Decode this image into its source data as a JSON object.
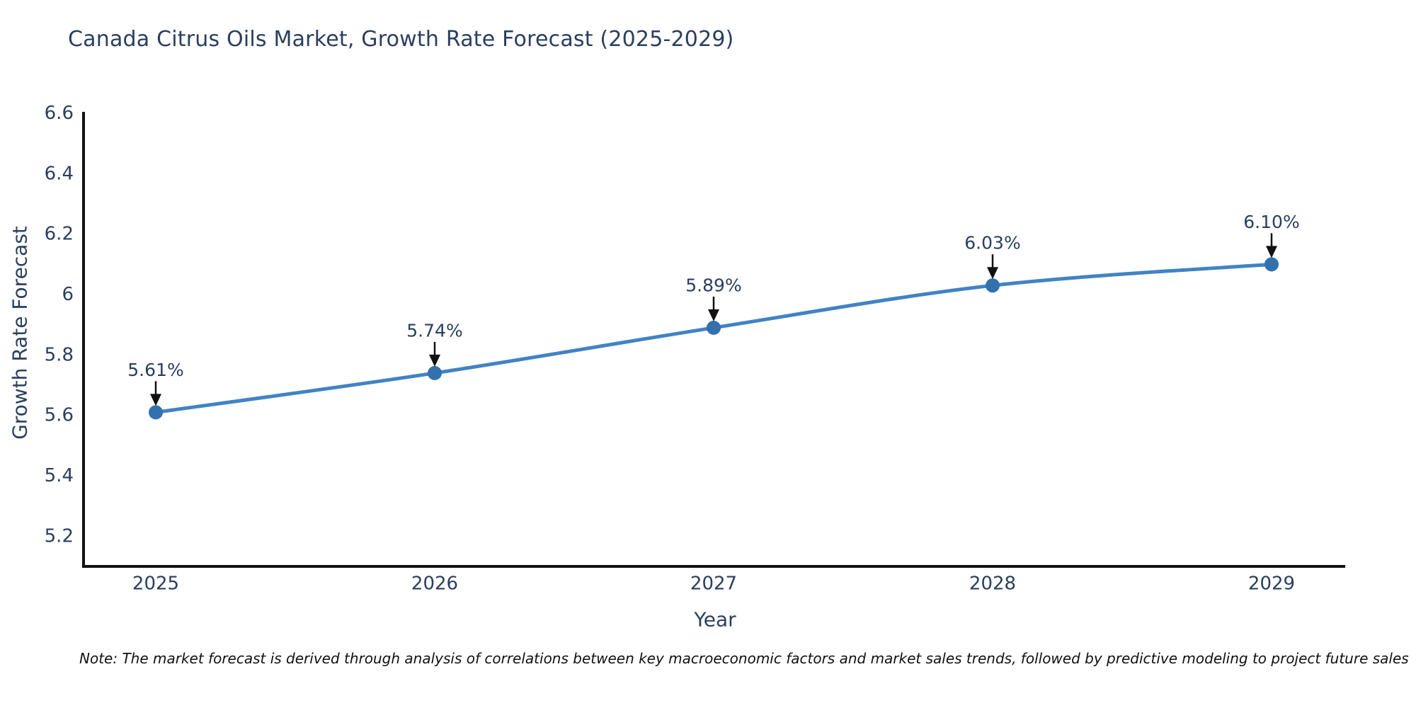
{
  "header": {
    "title": "Canada Citrus Oils Market, Growth Rate Forecast (2025-2029)"
  },
  "note": {
    "text": "Note: The market forecast is derived through analysis of correlations between key macroeconomic factors and market sales trends, followed by predictive modeling to project future sales"
  },
  "chart_data": {
    "type": "line",
    "title": "Canada Citrus Oils Market, Growth Rate Forecast (2025-2029)",
    "xlabel": "Year",
    "ylabel": "Growth Rate Forecast",
    "categories": [
      "2025",
      "2026",
      "2027",
      "2028",
      "2029"
    ],
    "values": [
      5.61,
      5.74,
      5.89,
      6.03,
      6.1
    ],
    "point_labels": [
      "5.61%",
      "5.74%",
      "5.89%",
      "6.03%",
      "6.10%"
    ],
    "ytick_values": [
      5.2,
      5.4,
      5.6,
      5.8,
      6,
      6.2,
      6.4,
      6.6
    ],
    "ytick_labels": [
      "5.2",
      "5.4",
      "5.6",
      "5.8",
      "6",
      "6.2",
      "6.4",
      "6.6"
    ],
    "ylim": [
      5.1,
      6.6
    ],
    "grid": false,
    "legend": "none",
    "annotations_style": "value-above-with-down-arrow",
    "colors": {
      "line": "#4183c4",
      "marker": "#3370ae",
      "axis": "#111111",
      "arrow": "#111111",
      "axis_text": "#2a3f5f",
      "annotation_text": "#2a3f5f",
      "title_text": "#2a3f5f",
      "note_text": "#111111"
    }
  }
}
